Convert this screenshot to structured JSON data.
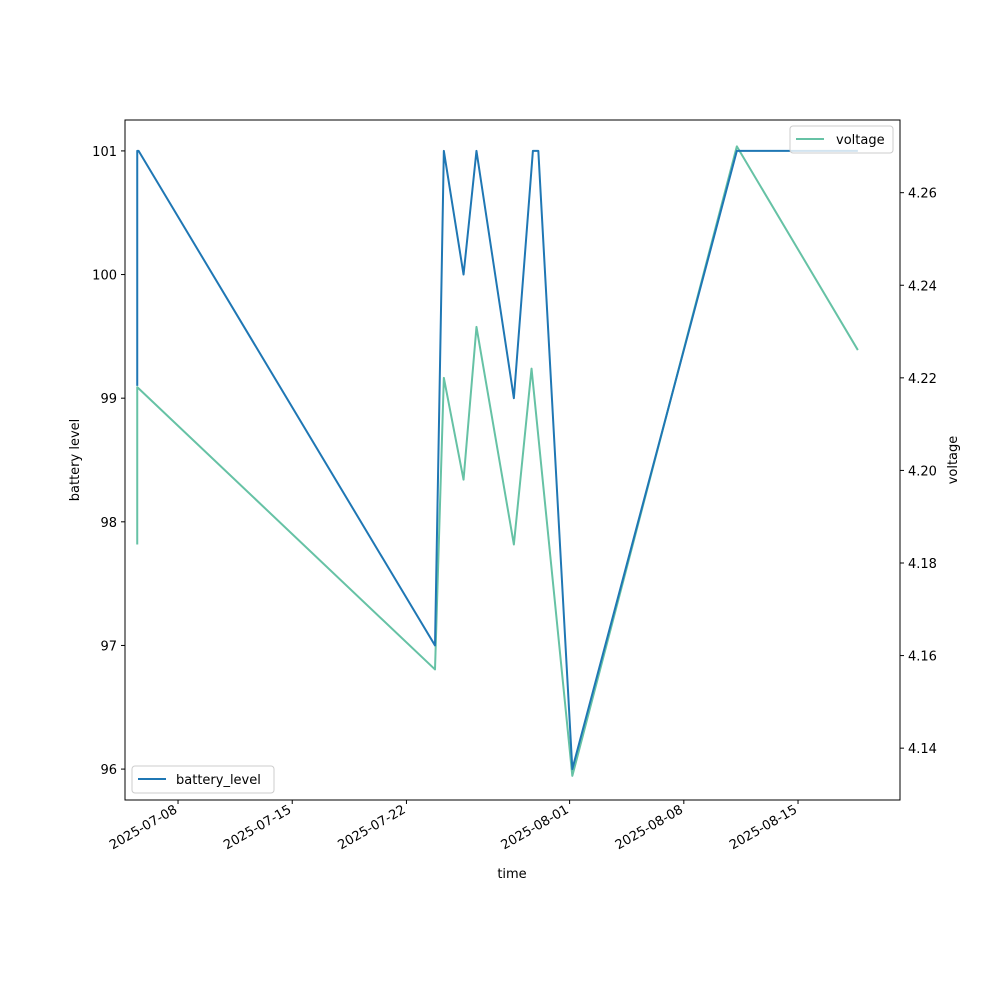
{
  "chart_data": {
    "type": "line",
    "xlabel": "time",
    "x_type": "date",
    "xlim": [
      "2025-07-04T18:00",
      "2025-08-21T06:00"
    ],
    "x_ticks": [
      "2025-07-08",
      "2025-07-15",
      "2025-07-22",
      "2025-08-01",
      "2025-08-08",
      "2025-08-15"
    ],
    "left_axis": {
      "label": "battery level",
      "ylim": [
        95.75,
        101.25
      ],
      "ticks": [
        96,
        97,
        98,
        99,
        100,
        101
      ]
    },
    "right_axis": {
      "label": "voltage",
      "ylim": [
        4.1288,
        4.2757
      ],
      "ticks": [
        4.14,
        4.16,
        4.18,
        4.2,
        4.22,
        4.24,
        4.26
      ]
    },
    "series": [
      {
        "name": "battery_level",
        "axis": "left",
        "color": "#1f77b4",
        "points": [
          [
            "2025-07-05T12:00",
            99.1
          ],
          [
            "2025-07-05T12:00",
            101
          ],
          [
            "2025-07-05T14:00",
            101
          ],
          [
            "2025-07-23T18:00",
            97
          ],
          [
            "2025-07-24T07:00",
            101
          ],
          [
            "2025-07-25T12:00",
            100
          ],
          [
            "2025-07-26T07:00",
            101
          ],
          [
            "2025-07-28T14:00",
            99
          ],
          [
            "2025-07-29T18:00",
            101
          ],
          [
            "2025-07-30T02:00",
            101
          ],
          [
            "2025-08-01T04:00",
            96
          ],
          [
            "2025-08-11T06:00",
            101
          ],
          [
            "2025-08-13T12:00",
            101
          ],
          [
            "2025-08-18T16:00",
            101
          ]
        ]
      },
      {
        "name": "voltage",
        "axis": "right",
        "color": "#66c2a5",
        "points": [
          [
            "2025-07-05T12:00",
            4.184
          ],
          [
            "2025-07-05T12:00",
            4.218
          ],
          [
            "2025-07-23T18:00",
            4.157
          ],
          [
            "2025-07-24T07:00",
            4.22
          ],
          [
            "2025-07-25T12:00",
            4.198
          ],
          [
            "2025-07-26T07:00",
            4.231
          ],
          [
            "2025-07-28T14:00",
            4.184
          ],
          [
            "2025-07-29T16:00",
            4.222
          ],
          [
            "2025-08-01T04:00",
            4.134
          ],
          [
            "2025-08-11T06:00",
            4.27
          ],
          [
            "2025-08-18T16:00",
            4.226
          ]
        ]
      }
    ],
    "legends": [
      {
        "series": "battery_level",
        "placement": "lower-left"
      },
      {
        "series": "voltage",
        "placement": "upper-right"
      }
    ]
  }
}
